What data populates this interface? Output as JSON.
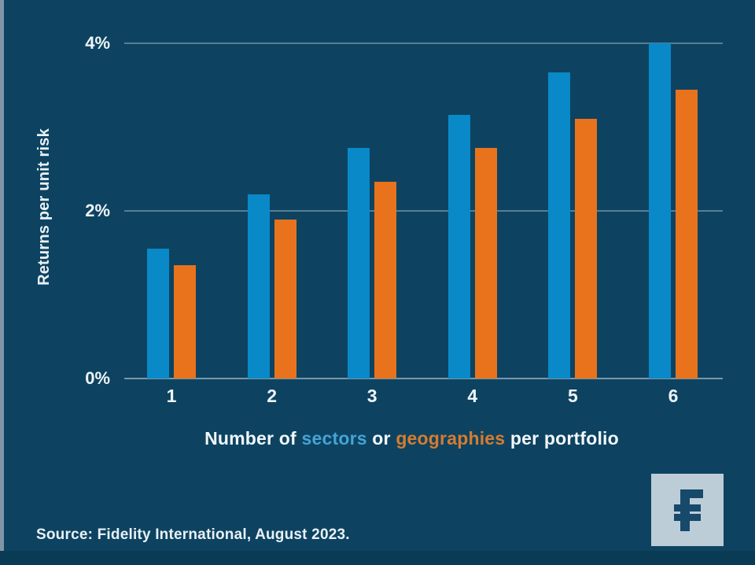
{
  "page": {
    "background_color": "#0d4361",
    "left_strip_color": "#8095a5",
    "bottom_band_color": "#0a3b54",
    "text_color": "#eef4f8"
  },
  "chart_data": {
    "type": "bar",
    "categories": [
      "1",
      "2",
      "3",
      "4",
      "5",
      "6"
    ],
    "series": [
      {
        "name": "sectors",
        "color": "#0989c8",
        "values": [
          1.55,
          2.2,
          2.75,
          3.15,
          3.65,
          4.0
        ]
      },
      {
        "name": "geographies",
        "color": "#e8731c",
        "values": [
          1.35,
          1.9,
          2.35,
          2.75,
          3.1,
          3.45
        ]
      }
    ],
    "ylabel": "Returns per unit risk",
    "xlabel_parts": [
      {
        "text": "Number of ",
        "color": "#f2f7fa"
      },
      {
        "text": "sectors",
        "color": "#45a3d6"
      },
      {
        "text": " or ",
        "color": "#f2f7fa"
      },
      {
        "text": "geographies",
        "color": "#d57c30"
      },
      {
        "text": " per portfolio",
        "color": "#f2f7fa"
      }
    ],
    "ylim": [
      0,
      4
    ],
    "yticks": [
      {
        "value": 0,
        "label": "0%"
      },
      {
        "value": 2,
        "label": "2%"
      },
      {
        "value": 4,
        "label": "4%"
      }
    ],
    "grid": true,
    "legend_position": "inline-in-xlabel"
  },
  "source": {
    "text": "Source: Fidelity International, August 2023."
  },
  "logo": {
    "name": "Fidelity International",
    "background_color": "#bccdd8",
    "glyph_color": "#17496a",
    "glyph": "fidelity-f"
  }
}
